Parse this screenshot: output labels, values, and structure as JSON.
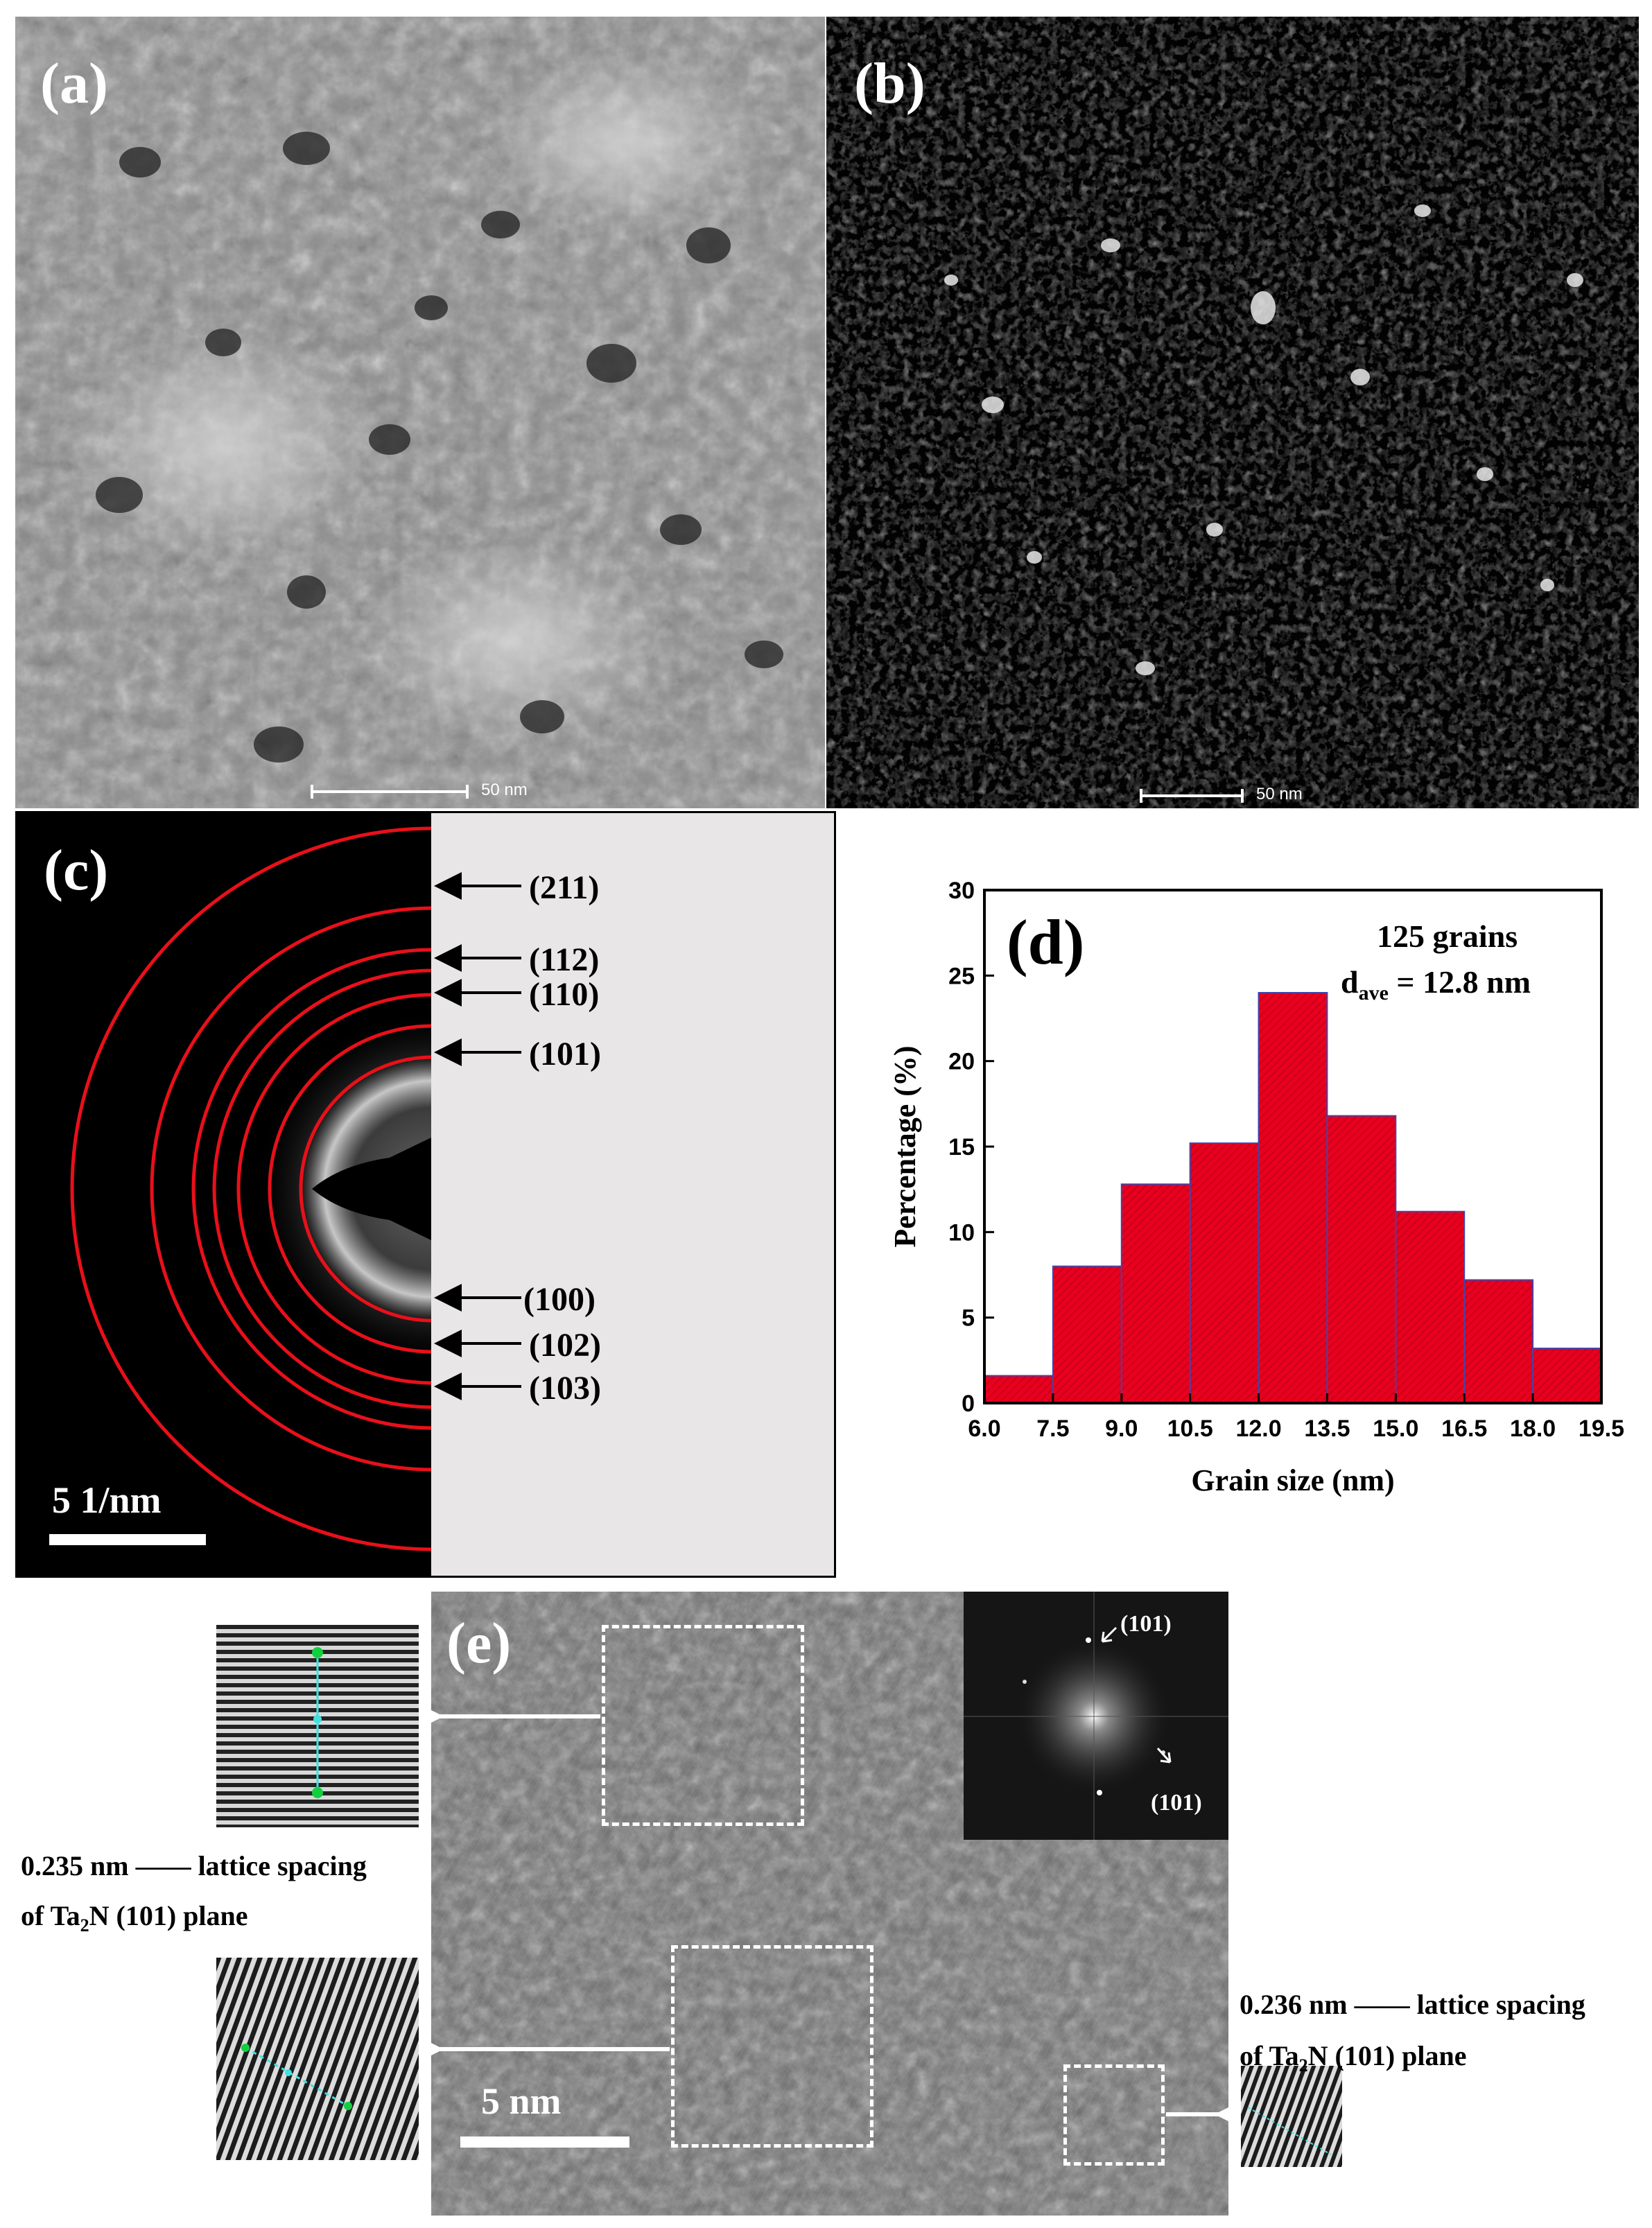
{
  "panels": {
    "a": {
      "label": "(a)",
      "scale_bar": "50 nm"
    },
    "b": {
      "label": "(b)",
      "scale_bar": "50 nm"
    },
    "c": {
      "label": "(c)",
      "scale_bar": "5 1/nm",
      "rings": [
        "(211)",
        "(112)",
        "(110)",
        "(101)",
        "(100)",
        "(102)",
        "(103)"
      ]
    },
    "d": {
      "label": "(d)",
      "annotation_count": "125 grains",
      "annotation_dave": "d",
      "annotation_dave_sub": "ave",
      "annotation_dave_value": " = 12.8 nm"
    },
    "e": {
      "label": "(e)",
      "scale_bar": "5 nm",
      "fft_spot_top": "(101)",
      "fft_spot_bottom": "(101)",
      "left_caption_line1": "0.235 nm —— lattice spacing",
      "left_caption_line2": "of Ta",
      "left_caption_line2_sub": "2",
      "left_caption_line2_rest": "N (101) plane",
      "right_caption_line1": "0.236 nm —— lattice spacing",
      "right_caption_line2": "of Ta",
      "right_caption_line2_sub": "2",
      "right_caption_line2_rest": "N (101) plane"
    }
  },
  "chart_data": {
    "type": "bar",
    "title": "",
    "xlabel": "Grain size (nm)",
    "ylabel": "Percentage (%)",
    "bin_edges": [
      6.0,
      7.5,
      9.0,
      10.5,
      12.0,
      13.5,
      15.0,
      16.5,
      18.0,
      19.5
    ],
    "values": [
      1.6,
      8.0,
      12.8,
      15.2,
      24.0,
      16.8,
      11.2,
      7.2,
      3.2
    ],
    "xlim": [
      6.0,
      19.5
    ],
    "ylim": [
      0,
      30
    ],
    "xticks": [
      "6.0",
      "7.5",
      "9.0",
      "10.5",
      "12.0",
      "13.5",
      "15.0",
      "16.5",
      "18.0",
      "19.5"
    ],
    "yticks": [
      "0",
      "5",
      "10",
      "15",
      "20",
      "25",
      "30"
    ],
    "bar_color": "#e8001e",
    "edge_color": "#4444aa"
  }
}
